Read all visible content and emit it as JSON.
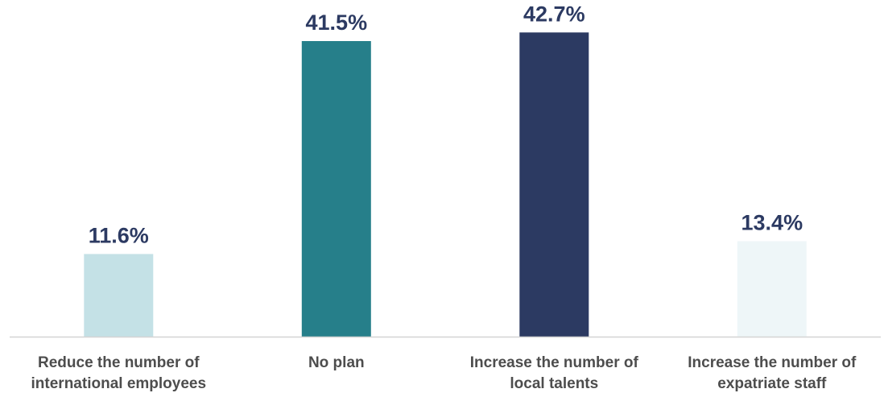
{
  "chart_data": {
    "type": "bar",
    "title": "",
    "xlabel": "",
    "ylabel": "",
    "ylim": [
      0,
      45
    ],
    "grid": false,
    "legend": "none",
    "categories": [
      [
        "Reduce the number of",
        "international employees"
      ],
      [
        "No plan"
      ],
      [
        "Increase the number of",
        "local talents"
      ],
      [
        "Increase the number of",
        "expatriate staff"
      ]
    ],
    "values": [
      11.6,
      41.5,
      42.7,
      13.4
    ],
    "value_labels": [
      "11.6%",
      "41.5%",
      "42.7%",
      "13.4%"
    ],
    "bar_colors": [
      "#c4e1e6",
      "#267f8a",
      "#2c3a62",
      "#eef6f8"
    ],
    "label_color": "#2c3a62",
    "category_label_color": "#4d4d4d",
    "axis_color": "#d4d4d4"
  }
}
